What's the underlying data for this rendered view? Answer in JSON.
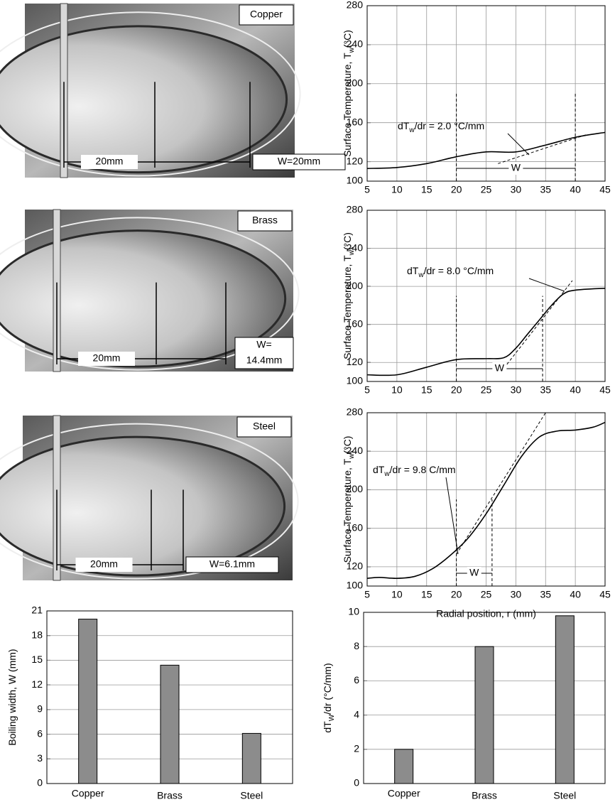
{
  "photos": [
    {
      "label": "Copper",
      "left": "20mm",
      "right": [
        "W=20mm"
      ]
    },
    {
      "label": "Brass",
      "left": "20mm",
      "right": [
        "W=",
        "14.4mm"
      ]
    },
    {
      "label": "Steel",
      "left": "20mm",
      "right": [
        "W=6.1mm"
      ]
    }
  ],
  "chart_data": [
    {
      "type": "line",
      "x": [
        5,
        10,
        15,
        20,
        25,
        30,
        35,
        40,
        45
      ],
      "series": [
        {
          "color": "#000000",
          "values": [
            113,
            114,
            118,
            125,
            130,
            130,
            137,
            145,
            150
          ]
        }
      ],
      "xlim": [
        5,
        45
      ],
      "ylim": [
        100,
        280
      ],
      "xticks": [
        5,
        10,
        15,
        20,
        25,
        30,
        35,
        40,
        45
      ],
      "yticks": [
        100,
        120,
        160,
        200,
        240,
        280
      ],
      "grid": true,
      "ylabel": "Surface Temperature, T",
      "ylabel_sub": "w",
      "ylabel_end": "(°C)",
      "annotation": {
        "pre": "dT",
        "sub": "w",
        "post": "/dr = 2.0 °C/mm"
      },
      "tangent": {
        "x": [
          27,
          42
        ],
        "y": [
          118,
          148
        ]
      },
      "w_marker": {
        "x": [
          20,
          40
        ],
        "label": "W"
      }
    },
    {
      "type": "line",
      "x": [
        5,
        10,
        15,
        20,
        25,
        28,
        30,
        32,
        34,
        36,
        38,
        40,
        45
      ],
      "series": [
        {
          "color": "#000000",
          "values": [
            107,
            107,
            115,
            123,
            124,
            125,
            135,
            150,
            165,
            180,
            192,
            196,
            198
          ]
        }
      ],
      "xlim": [
        5,
        45
      ],
      "ylim": [
        100,
        280
      ],
      "xticks": [
        5,
        10,
        15,
        20,
        25,
        30,
        35,
        40,
        45
      ],
      "yticks": [
        100,
        120,
        160,
        200,
        240,
        280
      ],
      "grid": true,
      "ylabel": "Surface Temperature, T",
      "ylabel_sub": "w",
      "ylabel_end": "(°C)",
      "annotation": {
        "pre": "dT",
        "sub": "w",
        "post": "/dr = 8.0 °C/mm"
      },
      "tangent": {
        "x": [
          28.5,
          39.5
        ],
        "y": [
          118,
          206
        ]
      },
      "w_marker": {
        "x": [
          20,
          34.5
        ],
        "label": "W"
      }
    },
    {
      "type": "line",
      "x": [
        5,
        7,
        10,
        13,
        16,
        19,
        22,
        25,
        28,
        31,
        34,
        37,
        40,
        43,
        45
      ],
      "series": [
        {
          "color": "#000000",
          "values": [
            108,
            109,
            108,
            110,
            118,
            132,
            150,
            175,
            205,
            235,
            255,
            261,
            262,
            265,
            270
          ]
        }
      ],
      "xlim": [
        5,
        45
      ],
      "ylim": [
        100,
        280
      ],
      "xticks": [
        5,
        10,
        15,
        20,
        25,
        30,
        35,
        40,
        45
      ],
      "yticks": [
        100,
        120,
        160,
        200,
        240,
        280
      ],
      "grid": true,
      "ylabel": "Surface Temperature, T",
      "ylabel_sub": "w",
      "ylabel_end": "(°C)",
      "xlabel": "Radial position, r (mm)",
      "annotation": {
        "pre": "dT",
        "sub": "w",
        "post": "/dr = 9.8  C/mm"
      },
      "tangent": {
        "x": [
          20,
          35
        ],
        "y": [
          133,
          280
        ]
      },
      "w_marker": {
        "x": [
          20,
          26
        ],
        "label": "W"
      }
    },
    {
      "type": "bar",
      "categories": [
        "Copper",
        "Brass",
        "Steel"
      ],
      "values": [
        20,
        14.4,
        6.1
      ],
      "color": "#8c8c8c",
      "ylim": [
        0,
        21
      ],
      "yticks": [
        0,
        3,
        6,
        9,
        12,
        15,
        18,
        21
      ],
      "grid": true,
      "ylabel": "Boiling width, W (mm)"
    },
    {
      "type": "bar",
      "categories": [
        "Copper",
        "Brass",
        "Steel"
      ],
      "values": [
        2,
        8,
        9.8
      ],
      "color": "#8c8c8c",
      "ylim": [
        0,
        10
      ],
      "yticks": [
        0,
        2,
        4,
        6,
        8,
        10
      ],
      "grid": true,
      "ylabel": "dT",
      "ylabel_sub": "W",
      "ylabel_end": "/dr (°C/mm)"
    }
  ]
}
